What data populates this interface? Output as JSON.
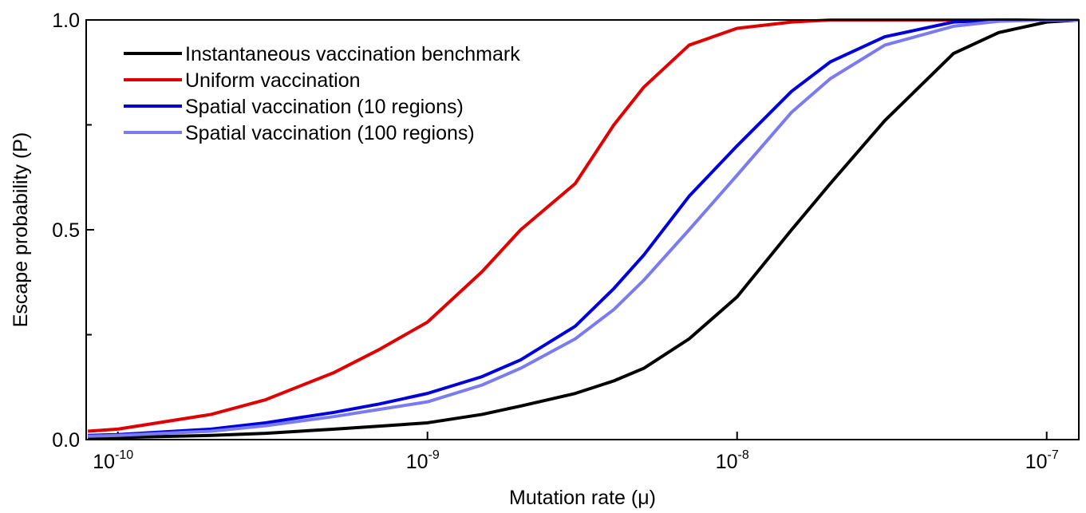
{
  "chart_data": {
    "type": "line",
    "xlabel": "Mutation rate (μ)",
    "ylabel": "Escape probability (P)",
    "xscale": "log",
    "xlim": [
      7.9e-11,
      1.27e-07
    ],
    "ylim": [
      0,
      1
    ],
    "xticks": [
      {
        "value": 1e-10,
        "label": "10",
        "exponent": "-10"
      },
      {
        "value": 1e-09,
        "label": "10",
        "exponent": "-9"
      },
      {
        "value": 1e-08,
        "label": "10",
        "exponent": "-8"
      },
      {
        "value": 1e-07,
        "label": "10",
        "exponent": "-7"
      }
    ],
    "yticks": [
      {
        "value": 0,
        "label": "0.0"
      },
      {
        "value": 0.5,
        "label": "0.5"
      },
      {
        "value": 1,
        "label": "1.0"
      }
    ],
    "yminorticks": [
      0.25,
      0.75
    ],
    "legend": "upper left",
    "x": [
      8e-11,
      1e-10,
      2e-10,
      3e-10,
      5e-10,
      7e-10,
      1e-09,
      1.5e-09,
      2e-09,
      3e-09,
      4e-09,
      5e-09,
      7e-09,
      1e-08,
      1.5e-08,
      2e-08,
      3e-08,
      5e-08,
      7e-08,
      1e-07,
      1.27e-07
    ],
    "series": [
      {
        "name": "Instantaneous vaccination benchmark",
        "color": "#000000",
        "values": [
          0.003,
          0.005,
          0.01,
          0.015,
          0.025,
          0.032,
          0.04,
          0.06,
          0.08,
          0.11,
          0.14,
          0.17,
          0.24,
          0.34,
          0.5,
          0.61,
          0.76,
          0.92,
          0.97,
          0.995,
          1
        ]
      },
      {
        "name": "Uniform vaccination",
        "color": "#e00000",
        "values": [
          0.02,
          0.025,
          0.06,
          0.095,
          0.16,
          0.215,
          0.28,
          0.4,
          0.5,
          0.61,
          0.75,
          0.84,
          0.94,
          0.98,
          0.995,
          1,
          1,
          1,
          1,
          1,
          1
        ]
      },
      {
        "name": "Spatial vaccination (10 regions)",
        "color": "#0000dd",
        "values": [
          0.01,
          0.012,
          0.025,
          0.04,
          0.065,
          0.085,
          0.11,
          0.15,
          0.19,
          0.27,
          0.36,
          0.44,
          0.58,
          0.7,
          0.83,
          0.9,
          0.96,
          0.995,
          1,
          1,
          1
        ]
      },
      {
        "name": "Spatial vaccination (100 regions)",
        "color": "#7b7bf0",
        "values": [
          0.008,
          0.01,
          0.02,
          0.033,
          0.055,
          0.072,
          0.09,
          0.13,
          0.17,
          0.24,
          0.31,
          0.38,
          0.5,
          0.63,
          0.78,
          0.86,
          0.94,
          0.985,
          0.997,
          1,
          1
        ]
      }
    ]
  }
}
